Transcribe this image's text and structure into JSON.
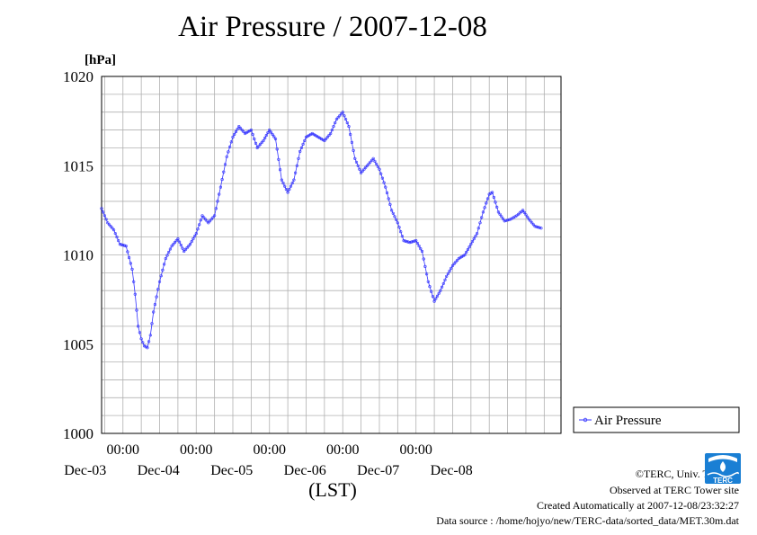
{
  "chart_data": {
    "type": "line",
    "title": "Air Pressure / 2007-12-08",
    "ylabel": "[hPa]",
    "xlabel": "(LST)",
    "ylim": [
      1000,
      1020
    ],
    "yticks": [
      "1000",
      "1005",
      "1010",
      "1015",
      "1020"
    ],
    "xlim": [
      "2007-12-02 17:00",
      "2007-12-08 23:30"
    ],
    "xticks": [
      {
        "time": "2007-12-03 00:00",
        "label": "00:00",
        "date": "Dec-03"
      },
      {
        "time": "2007-12-04 00:00",
        "label": "00:00",
        "date": "Dec-04"
      },
      {
        "time": "2007-12-05 00:00",
        "label": "00:00",
        "date": "Dec-05"
      },
      {
        "time": "2007-12-06 00:00",
        "label": "00:00",
        "date": "Dec-06"
      },
      {
        "time": "2007-12-07 00:00",
        "label": "00:00",
        "date": "Dec-07"
      }
    ],
    "trailing_date_label": "Dec-08",
    "grid": true,
    "legend_position": "right",
    "series": [
      {
        "name": "Air Pressure",
        "color": "#3333ff",
        "points": [
          [
            "2007-12-02 17:00",
            1012.6
          ],
          [
            "2007-12-02 19:00",
            1011.8
          ],
          [
            "2007-12-02 21:00",
            1011.4
          ],
          [
            "2007-12-02 23:00",
            1010.6
          ],
          [
            "2007-12-03 01:00",
            1010.5
          ],
          [
            "2007-12-03 03:00",
            1009.2
          ],
          [
            "2007-12-03 04:00",
            1007.8
          ],
          [
            "2007-12-03 05:00",
            1006.0
          ],
          [
            "2007-12-03 06:00",
            1005.3
          ],
          [
            "2007-12-03 07:00",
            1004.9
          ],
          [
            "2007-12-03 08:00",
            1004.8
          ],
          [
            "2007-12-03 09:00",
            1005.5
          ],
          [
            "2007-12-03 10:00",
            1006.8
          ],
          [
            "2007-12-03 12:00",
            1008.5
          ],
          [
            "2007-12-03 14:00",
            1009.8
          ],
          [
            "2007-12-03 16:00",
            1010.5
          ],
          [
            "2007-12-03 18:00",
            1010.9
          ],
          [
            "2007-12-03 20:00",
            1010.2
          ],
          [
            "2007-12-03 22:00",
            1010.6
          ],
          [
            "2007-12-04 00:00",
            1011.2
          ],
          [
            "2007-12-04 02:00",
            1012.2
          ],
          [
            "2007-12-04 04:00",
            1011.8
          ],
          [
            "2007-12-04 06:00",
            1012.2
          ],
          [
            "2007-12-04 08:00",
            1013.8
          ],
          [
            "2007-12-04 10:00",
            1015.5
          ],
          [
            "2007-12-04 12:00",
            1016.6
          ],
          [
            "2007-12-04 14:00",
            1017.2
          ],
          [
            "2007-12-04 16:00",
            1016.8
          ],
          [
            "2007-12-04 18:00",
            1017.0
          ],
          [
            "2007-12-04 20:00",
            1016.0
          ],
          [
            "2007-12-04 22:00",
            1016.4
          ],
          [
            "2007-12-05 00:00",
            1017.0
          ],
          [
            "2007-12-05 02:00",
            1016.5
          ],
          [
            "2007-12-05 04:00",
            1014.2
          ],
          [
            "2007-12-05 06:00",
            1013.5
          ],
          [
            "2007-12-05 08:00",
            1014.2
          ],
          [
            "2007-12-05 10:00",
            1015.8
          ],
          [
            "2007-12-05 12:00",
            1016.6
          ],
          [
            "2007-12-05 14:00",
            1016.8
          ],
          [
            "2007-12-05 16:00",
            1016.6
          ],
          [
            "2007-12-05 18:00",
            1016.4
          ],
          [
            "2007-12-05 20:00",
            1016.8
          ],
          [
            "2007-12-05 22:00",
            1017.6
          ],
          [
            "2007-12-06 00:00",
            1018.0
          ],
          [
            "2007-12-06 02:00",
            1017.2
          ],
          [
            "2007-12-06 04:00",
            1015.4
          ],
          [
            "2007-12-06 06:00",
            1014.6
          ],
          [
            "2007-12-06 08:00",
            1015.0
          ],
          [
            "2007-12-06 10:00",
            1015.4
          ],
          [
            "2007-12-06 12:00",
            1014.8
          ],
          [
            "2007-12-06 14:00",
            1013.8
          ],
          [
            "2007-12-06 16:00",
            1012.5
          ],
          [
            "2007-12-06 18:00",
            1011.8
          ],
          [
            "2007-12-06 20:00",
            1010.8
          ],
          [
            "2007-12-06 22:00",
            1010.7
          ],
          [
            "2007-12-07 00:00",
            1010.8
          ],
          [
            "2007-12-07 02:00",
            1010.2
          ],
          [
            "2007-12-07 04:00",
            1008.5
          ],
          [
            "2007-12-07 06:00",
            1007.4
          ],
          [
            "2007-12-07 08:00",
            1008.0
          ],
          [
            "2007-12-07 10:00",
            1008.8
          ],
          [
            "2007-12-07 12:00",
            1009.4
          ],
          [
            "2007-12-07 14:00",
            1009.8
          ],
          [
            "2007-12-07 16:00",
            1010.0
          ],
          [
            "2007-12-07 18:00",
            1010.6
          ],
          [
            "2007-12-07 20:00",
            1011.2
          ],
          [
            "2007-12-07 22:00",
            1012.4
          ],
          [
            "2007-12-08 00:00",
            1013.4
          ],
          [
            "2007-12-08 01:00",
            1013.5
          ],
          [
            "2007-12-08 03:00",
            1012.4
          ],
          [
            "2007-12-08 05:00",
            1011.9
          ],
          [
            "2007-12-08 07:00",
            1012.0
          ],
          [
            "2007-12-08 09:00",
            1012.2
          ],
          [
            "2007-12-08 11:00",
            1012.5
          ],
          [
            "2007-12-08 13:00",
            1012.0
          ],
          [
            "2007-12-08 15:00",
            1011.6
          ],
          [
            "2007-12-08 17:00",
            1011.5
          ]
        ]
      }
    ]
  },
  "credits": {
    "copyright": "©TERC, Univ. Tsukuba",
    "observed": "Observed at TERC Tower site",
    "created": "Created Automatically at 2007-12-08/23:32:27",
    "source": "Data source : /home/hojyo/new/TERC-data/sorted_data/MET.30m.dat"
  },
  "logo": {
    "text": "TERC",
    "color": "#1a7fd4"
  }
}
